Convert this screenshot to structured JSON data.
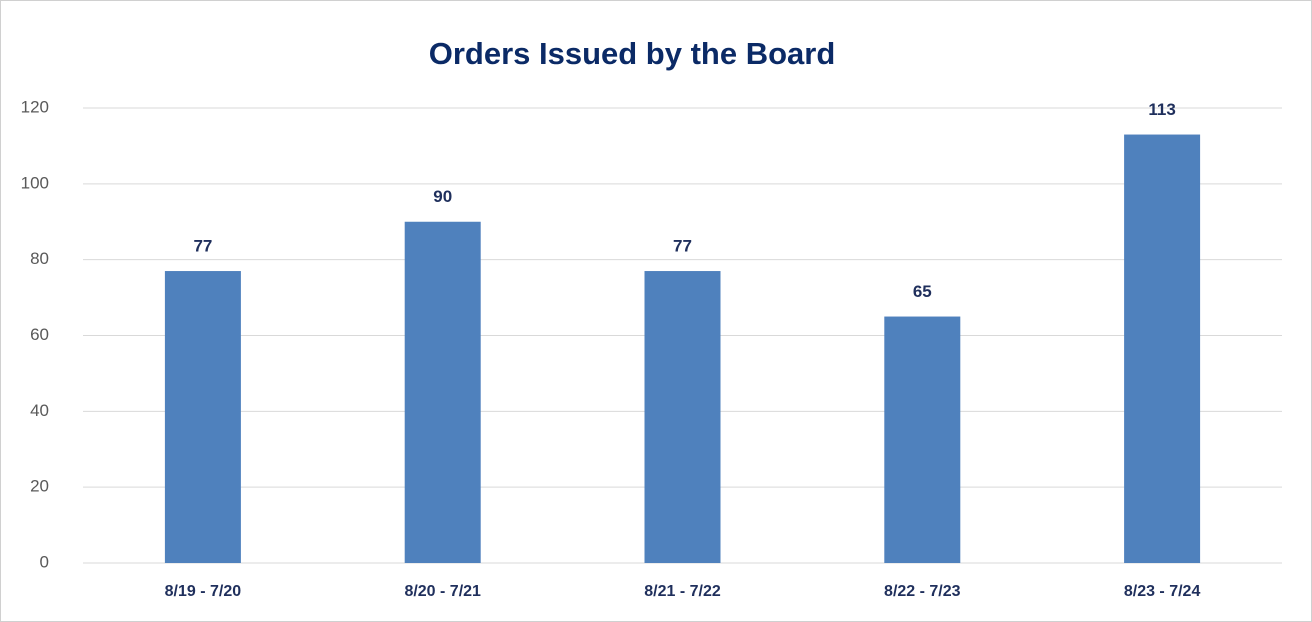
{
  "chart_data": {
    "type": "bar",
    "title": "Orders Issued by the Board",
    "categories": [
      "8/19 - 7/20",
      "8/20 - 7/21",
      "8/21 - 7/22",
      "8/22 - 7/23",
      "8/23 - 7/24"
    ],
    "values": [
      77,
      90,
      77,
      65,
      113
    ],
    "color": "#4f81bd",
    "ylim": [
      0,
      120
    ],
    "yticks": [
      0,
      20,
      40,
      60,
      80,
      100,
      120
    ],
    "grid": true
  }
}
